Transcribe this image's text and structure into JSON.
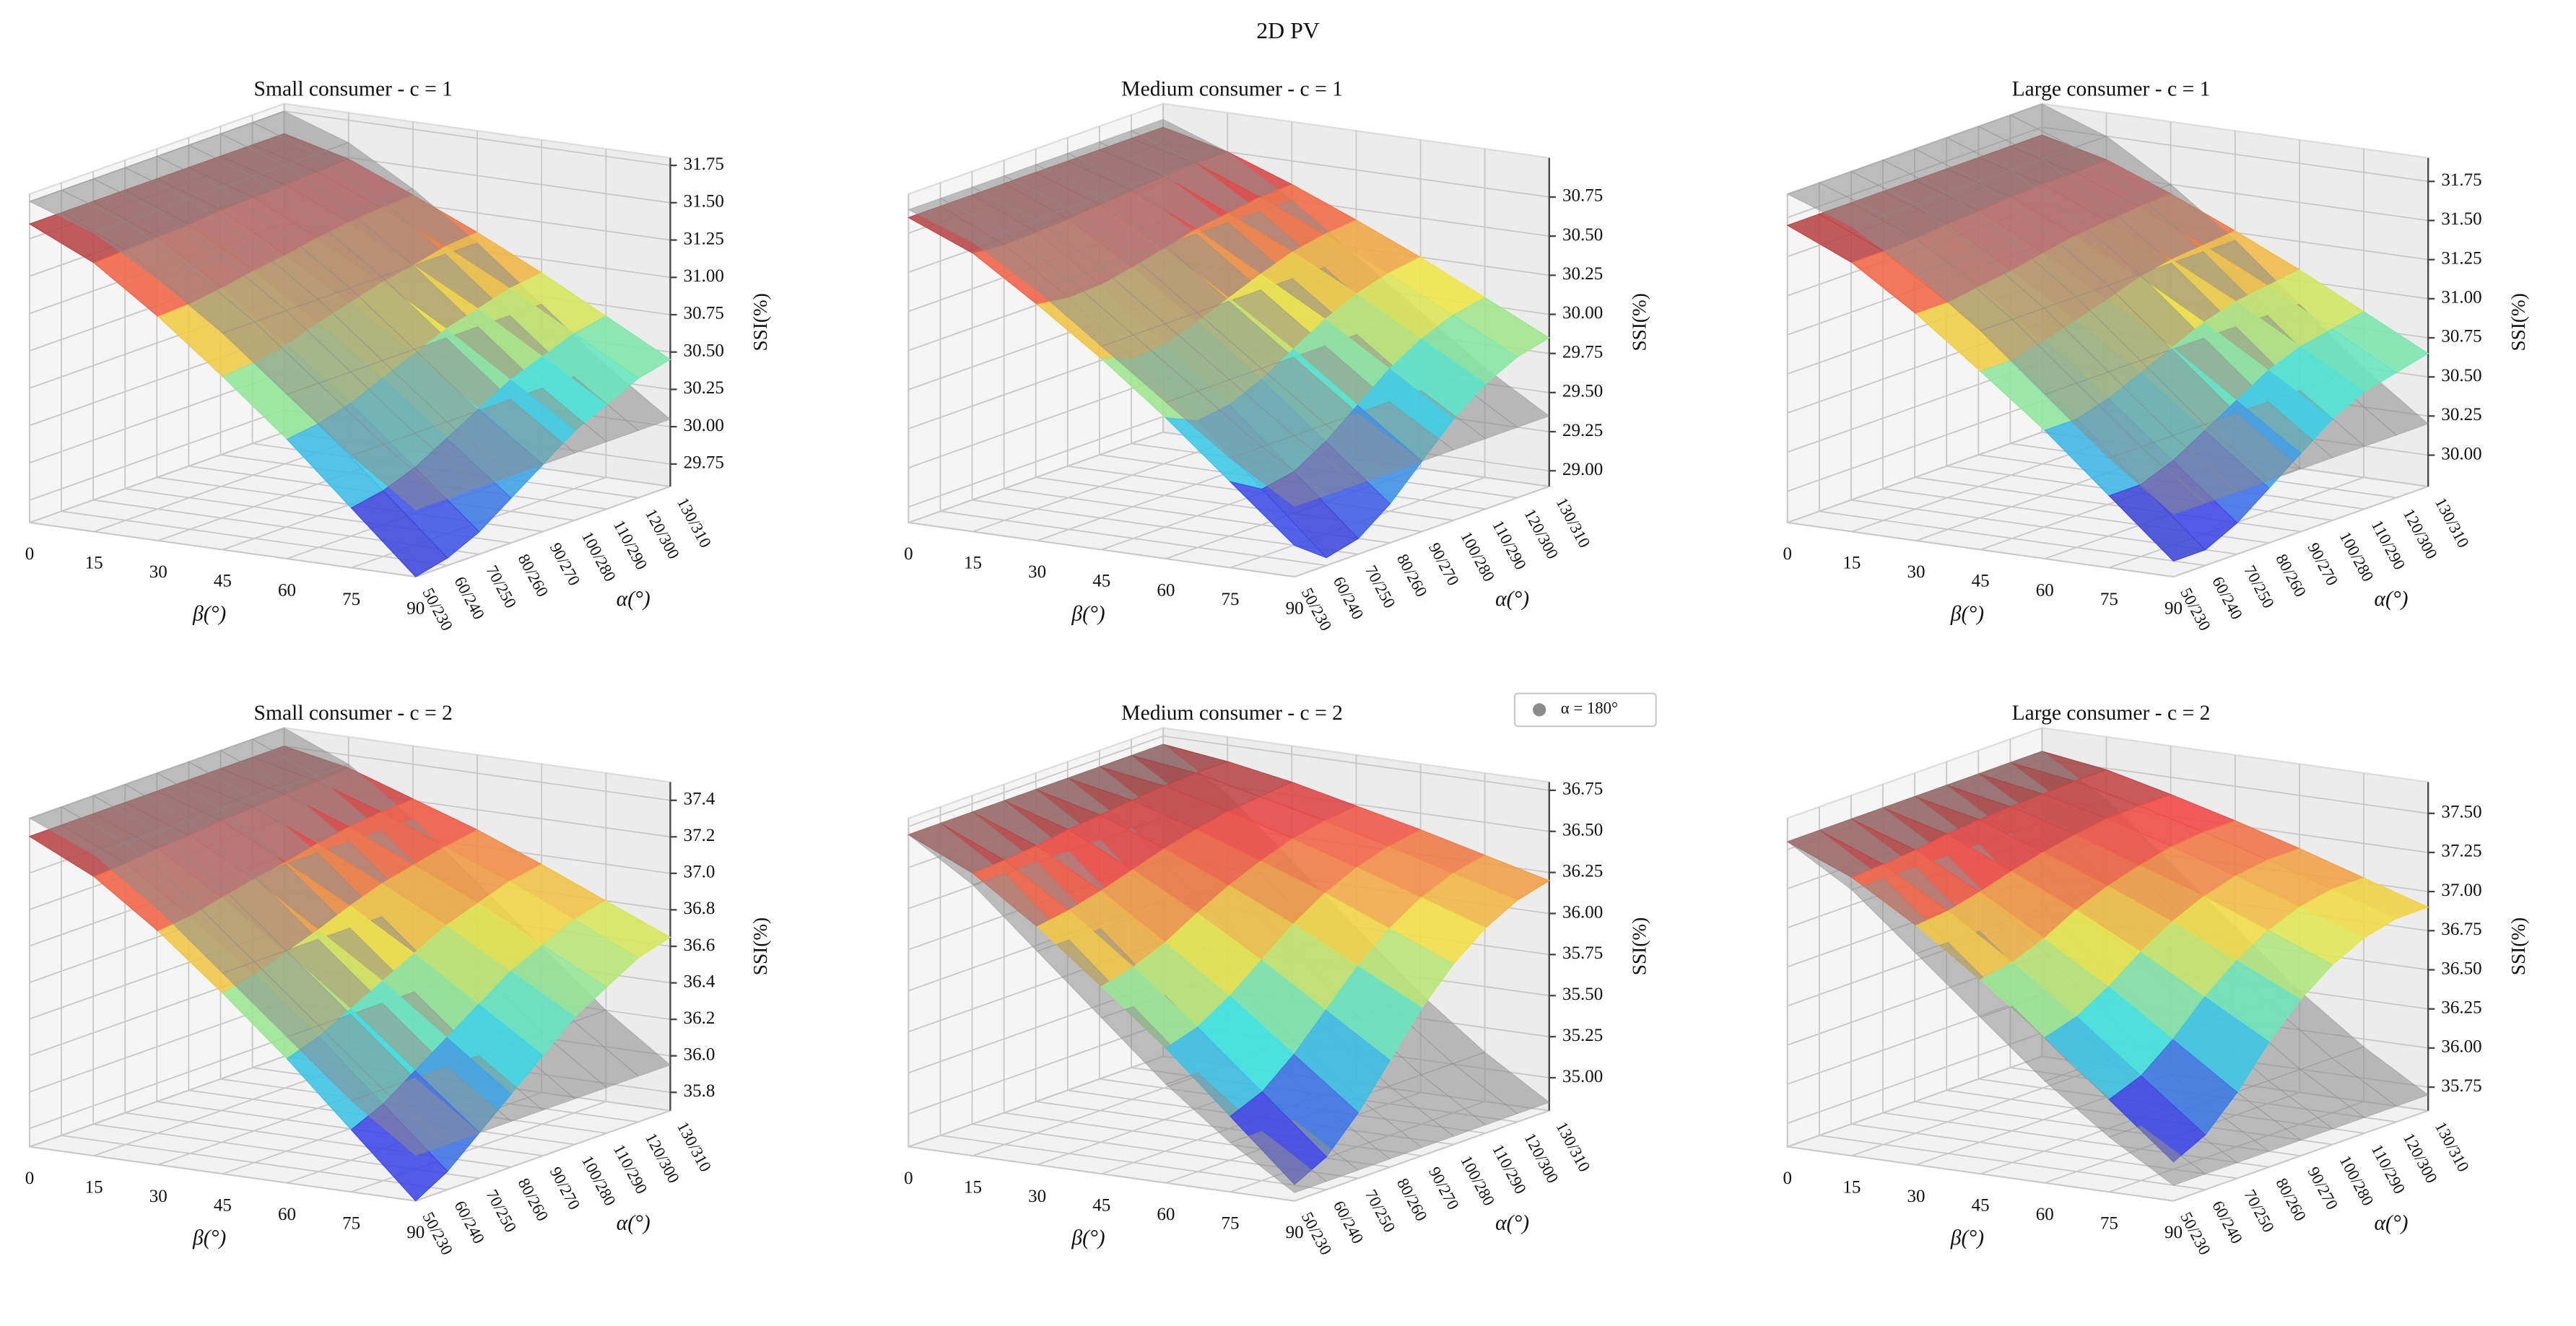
{
  "title": "2D PV",
  "legend": {
    "name": "α = 180°",
    "color": "#8c8c8c"
  },
  "chart_data": [
    {
      "type": "surface",
      "title": "Small consumer - c = 1",
      "xlabel": "β(°)",
      "ylabel": "α(°)",
      "zlabel": "SSI(%)",
      "x": [
        0,
        15,
        30,
        45,
        60,
        75,
        90
      ],
      "xlim": [
        0,
        90
      ],
      "xticks": [
        0,
        15,
        30,
        45,
        60,
        75,
        90
      ],
      "y_categories": [
        "50/230",
        "60/240",
        "70/250",
        "80/260",
        "90/270",
        "100/280",
        "110/290",
        "120/300",
        "130/310"
      ],
      "zlim": [
        29.6,
        31.8
      ],
      "zticks": [
        29.75,
        {
          "value": 30,
          "label": "30.00"
        },
        30.25,
        {
          "value": 30.5,
          "label": "30.50"
        },
        30.75,
        {
          "value": 31,
          "label": "31.00"
        },
        31.25,
        {
          "value": 31.5,
          "label": "31.50"
        },
        31.75
      ],
      "colormap": "jet",
      "values": [
        [
          31.6,
          31.6,
          31.6,
          31.6,
          31.6,
          31.6,
          31.6,
          31.6,
          31.6
        ],
        [
          31.4,
          31.41,
          31.42,
          31.43,
          31.45,
          31.46,
          31.47,
          31.48,
          31.49
        ],
        [
          31.1,
          31.11,
          31.14,
          31.18,
          31.21,
          31.25,
          31.28,
          31.3,
          31.31
        ],
        [
          30.76,
          30.78,
          30.82,
          30.89,
          30.95,
          31.01,
          31.05,
          31.1,
          31.12
        ],
        [
          30.4,
          30.43,
          30.49,
          30.58,
          30.67,
          30.76,
          30.82,
          30.88,
          30.91
        ],
        [
          30.0,
          30.04,
          30.12,
          30.24,
          30.36,
          30.48,
          30.56,
          30.64,
          30.68
        ],
        [
          29.6,
          29.65,
          29.75,
          29.9,
          30.05,
          30.2,
          30.3,
          30.4,
          30.45
        ]
      ],
      "reference_values": [
        31.75,
        31.6,
        31.35,
        31.05,
        30.7,
        30.35,
        30.05
      ]
    },
    {
      "type": "surface",
      "title": "Medium consumer - c = 1",
      "xlabel": "β(°)",
      "ylabel": "α(°)",
      "zlabel": "SSI(%)",
      "x": [
        0,
        15,
        30,
        45,
        60,
        75,
        90
      ],
      "xlim": [
        0,
        90
      ],
      "xticks": [
        0,
        15,
        30,
        45,
        60,
        75,
        90
      ],
      "y_categories": [
        "50/230",
        "60/240",
        "70/250",
        "80/260",
        "90/270",
        "100/280",
        "110/290",
        "120/300",
        "130/310"
      ],
      "zlim": [
        28.9,
        31.0
      ],
      "zticks": [
        {
          "value": 29,
          "label": "29.00"
        },
        29.25,
        {
          "value": 29.5,
          "label": "29.50"
        },
        29.75,
        {
          "value": 30,
          "label": "30.00"
        },
        30.25,
        {
          "value": 30.5,
          "label": "30.50"
        },
        30.75
      ],
      "colormap": "jet",
      "values": [
        [
          30.85,
          30.85,
          30.85,
          30.85,
          30.85,
          30.85,
          30.85,
          30.85,
          30.85
        ],
        [
          30.68,
          30.66,
          30.67,
          30.68,
          30.7,
          30.72,
          30.74,
          30.75,
          30.75
        ],
        [
          30.41,
          30.38,
          30.39,
          30.43,
          30.48,
          30.53,
          30.56,
          30.59,
          30.6
        ],
        [
          30.12,
          30.05,
          30.07,
          30.14,
          30.22,
          30.3,
          30.37,
          30.41,
          30.43
        ],
        [
          29.8,
          29.71,
          29.74,
          29.83,
          29.95,
          30.07,
          30.16,
          30.22,
          30.25
        ],
        [
          29.45,
          29.33,
          29.37,
          29.49,
          29.65,
          29.81,
          29.93,
          30.01,
          30.05
        ],
        [
          29.1,
          28.95,
          29.0,
          29.15,
          29.35,
          29.55,
          29.7,
          29.8,
          29.85
        ]
      ],
      "reference_values": [
        30.9,
        30.75,
        30.5,
        30.2,
        29.9,
        29.6,
        29.35
      ]
    },
    {
      "type": "surface",
      "title": "Large consumer - c = 1",
      "xlabel": "β(°)",
      "ylabel": "α(°)",
      "zlabel": "SSI(%)",
      "x": [
        0,
        15,
        30,
        45,
        60,
        75,
        90
      ],
      "xlim": [
        0,
        90
      ],
      "xticks": [
        0,
        15,
        30,
        45,
        60,
        75,
        90
      ],
      "y_categories": [
        "50/230",
        "60/240",
        "70/250",
        "80/260",
        "90/270",
        "100/280",
        "110/290",
        "120/300",
        "130/310"
      ],
      "zlim": [
        29.8,
        31.9
      ],
      "zticks": [
        {
          "value": 30,
          "label": "30.00"
        },
        30.25,
        {
          "value": 30.5,
          "label": "30.50"
        },
        30.75,
        {
          "value": 31,
          "label": "31.00"
        },
        31.25,
        {
          "value": 31.5,
          "label": "31.50"
        },
        31.75
      ],
      "colormap": "jet",
      "values": [
        [
          31.7,
          31.7,
          31.7,
          31.7,
          31.7,
          31.7,
          31.7,
          31.7,
          31.7
        ],
        [
          31.52,
          31.52,
          31.53,
          31.55,
          31.56,
          31.58,
          31.59,
          31.59,
          31.6
        ],
        [
          31.25,
          31.25,
          31.28,
          31.31,
          31.35,
          31.39,
          31.41,
          31.43,
          31.44
        ],
        [
          30.94,
          30.94,
          30.99,
          31.05,
          31.11,
          31.18,
          31.22,
          31.24,
          31.26
        ],
        [
          30.62,
          30.62,
          30.68,
          30.77,
          30.86,
          30.95,
          31.01,
          31.04,
          31.07
        ],
        [
          30.26,
          30.26,
          30.34,
          30.46,
          30.58,
          30.7,
          30.78,
          30.82,
          30.86
        ],
        [
          29.9,
          29.9,
          30.0,
          30.15,
          30.3,
          30.45,
          30.55,
          30.6,
          30.65
        ]
      ],
      "reference_values": [
        31.9,
        31.75,
        31.5,
        31.2,
        30.85,
        30.5,
        30.2
      ]
    },
    {
      "type": "surface",
      "title": "Small consumer - c = 2",
      "xlabel": "β(°)",
      "ylabel": "α(°)",
      "zlabel": "SSI(%)",
      "x": [
        0,
        15,
        30,
        45,
        60,
        75,
        90
      ],
      "xlim": [
        0,
        90
      ],
      "xticks": [
        0,
        15,
        30,
        45,
        60,
        75,
        90
      ],
      "y_categories": [
        "50/230",
        "60/240",
        "70/250",
        "80/260",
        "90/270",
        "100/280",
        "110/290",
        "120/300",
        "130/310"
      ],
      "zlim": [
        35.7,
        37.5
      ],
      "zticks": [
        35.8,
        {
          "value": 36,
          "label": "36.0"
        },
        36.2,
        36.4,
        36.6,
        36.8,
        {
          "value": 37,
          "label": "37.0"
        },
        37.2,
        37.4
      ],
      "colormap": "jet",
      "values": [
        [
          37.4,
          37.4,
          37.4,
          37.4,
          37.4,
          37.4,
          37.4,
          37.4,
          37.4
        ],
        [
          37.23,
          37.24,
          37.26,
          37.27,
          37.29,
          37.3,
          37.31,
          37.32,
          37.33
        ],
        [
          36.98,
          37.0,
          37.04,
          37.08,
          37.11,
          37.15,
          37.18,
          37.2,
          37.21
        ],
        [
          36.69,
          36.73,
          36.79,
          36.85,
          36.92,
          36.98,
          37.02,
          37.06,
          37.09
        ],
        [
          36.38,
          36.44,
          36.53,
          36.62,
          36.71,
          36.8,
          36.86,
          36.92,
          36.95
        ],
        [
          36.04,
          36.12,
          36.24,
          36.36,
          36.48,
          36.6,
          36.68,
          36.76,
          36.8
        ],
        [
          35.7,
          35.8,
          35.95,
          36.1,
          36.25,
          36.4,
          36.5,
          36.6,
          36.65
        ]
      ],
      "reference_values": [
        37.5,
        37.35,
        37.1,
        36.8,
        36.5,
        36.2,
        35.95
      ]
    },
    {
      "type": "surface",
      "title": "Medium consumer - c = 2",
      "xlabel": "β(°)",
      "ylabel": "α(°)",
      "zlabel": "SSI(%)",
      "x": [
        0,
        15,
        30,
        45,
        60,
        75,
        90
      ],
      "xlim": [
        0,
        90
      ],
      "xticks": [
        0,
        15,
        30,
        45,
        60,
        75,
        90
      ],
      "y_categories": [
        "50/230",
        "60/240",
        "70/250",
        "80/260",
        "90/270",
        "100/280",
        "110/290",
        "120/300",
        "130/310"
      ],
      "zlim": [
        34.8,
        36.8
      ],
      "zticks": [
        {
          "value": 35,
          "label": "35.00"
        },
        35.25,
        {
          "value": 35.5,
          "label": "35.50"
        },
        35.75,
        {
          "value": 36,
          "label": "36.00"
        },
        36.25,
        {
          "value": 36.5,
          "label": "36.50"
        },
        36.75
      ],
      "colormap": "jet",
      "values": [
        [
          36.7,
          36.7,
          36.7,
          36.7,
          36.7,
          36.7,
          36.7,
          36.7,
          36.7
        ],
        [
          36.52,
          36.53,
          36.55,
          36.58,
          36.6,
          36.62,
          36.64,
          36.65,
          36.65
        ],
        [
          36.25,
          36.28,
          36.33,
          36.39,
          36.45,
          36.5,
          36.54,
          36.56,
          36.58
        ],
        [
          35.94,
          35.99,
          36.07,
          36.18,
          36.28,
          36.36,
          36.43,
          36.47,
          36.49
        ],
        [
          35.62,
          35.68,
          35.8,
          35.95,
          36.1,
          36.22,
          36.31,
          36.37,
          36.4
        ],
        [
          35.26,
          35.34,
          35.5,
          35.7,
          35.9,
          36.06,
          36.18,
          36.26,
          36.3
        ],
        [
          34.9,
          35.0,
          35.2,
          35.45,
          35.7,
          35.9,
          36.05,
          36.15,
          36.2
        ]
      ],
      "reference_values": [
        36.7,
        36.45,
        36.1,
        35.75,
        35.4,
        35.1,
        34.85
      ]
    },
    {
      "type": "surface",
      "title": "Large consumer - c = 2",
      "xlabel": "β(°)",
      "ylabel": "α(°)",
      "zlabel": "SSI(%)",
      "x": [
        0,
        15,
        30,
        45,
        60,
        75,
        90
      ],
      "xlim": [
        0,
        90
      ],
      "xticks": [
        0,
        15,
        30,
        45,
        60,
        75,
        90
      ],
      "y_categories": [
        "50/230",
        "60/240",
        "70/250",
        "80/260",
        "90/270",
        "100/280",
        "110/290",
        "120/300",
        "130/310"
      ],
      "zlim": [
        35.6,
        37.7
      ],
      "zticks": [
        35.75,
        {
          "value": 36,
          "label": "36.00"
        },
        36.25,
        {
          "value": 36.5,
          "label": "36.50"
        },
        36.75,
        {
          "value": 37,
          "label": "37.00"
        },
        37.25,
        {
          "value": 37.5,
          "label": "37.50"
        }
      ],
      "colormap": "jet",
      "values": [
        [
          37.55,
          37.55,
          37.55,
          37.55,
          37.55,
          37.55,
          37.55,
          37.55,
          37.55
        ],
        [
          37.38,
          37.39,
          37.41,
          37.44,
          37.46,
          37.47,
          37.48,
          37.49,
          37.49
        ],
        [
          37.13,
          37.15,
          37.2,
          37.26,
          37.31,
          37.35,
          37.38,
          37.39,
          37.39
        ],
        [
          36.84,
          36.88,
          36.96,
          37.07,
          37.15,
          37.21,
          37.26,
          37.28,
          37.28
        ],
        [
          36.53,
          36.59,
          36.71,
          36.86,
          36.98,
          37.07,
          37.13,
          37.16,
          37.16
        ],
        [
          36.19,
          36.27,
          36.43,
          36.63,
          36.79,
          36.91,
          36.99,
          37.03,
          37.03
        ],
        [
          35.85,
          35.95,
          36.15,
          36.4,
          36.6,
          36.75,
          36.85,
          36.9,
          36.9
        ]
      ],
      "reference_values": [
        37.55,
        37.3,
        36.95,
        36.6,
        36.25,
        35.95,
        35.7
      ]
    }
  ]
}
